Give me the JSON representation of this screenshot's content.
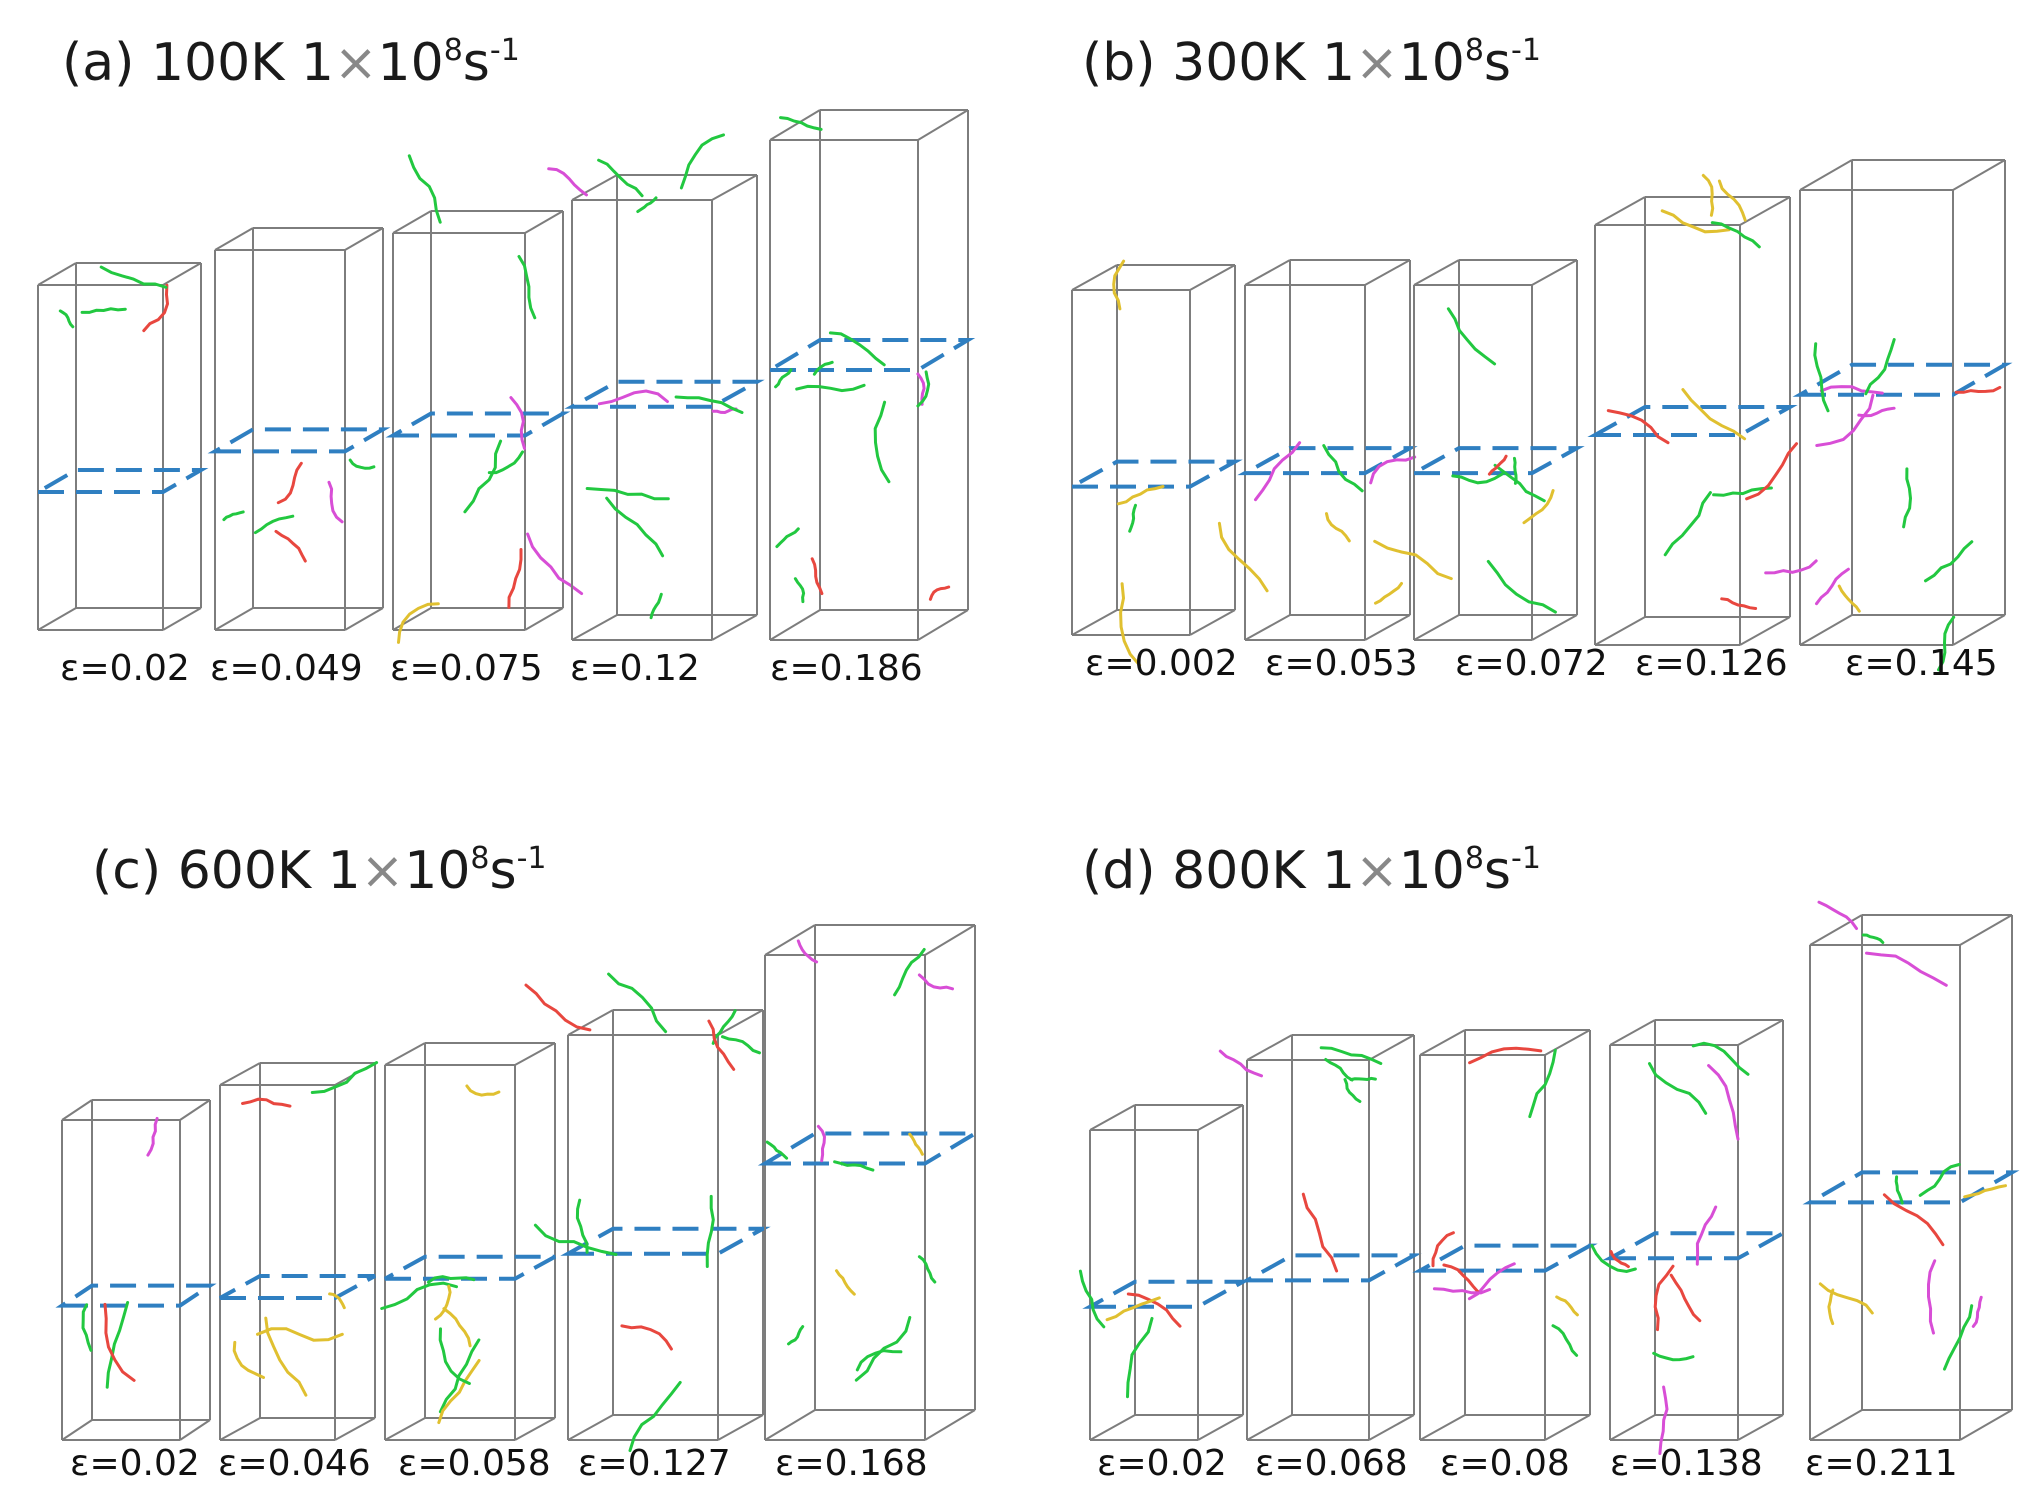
{
  "colors": {
    "box": "#7d7d7d",
    "plane": "#2f7fc1",
    "dislocation_main": "#22c840",
    "dislocation_secondary": "#e8473f",
    "dislocation_tertiary": "#d84ed6",
    "dislocation_other": "#e0c030"
  },
  "panels": [
    {
      "title_prefix": "(a) 100K 1",
      "title_times": "×",
      "title_ten": "10",
      "title_exp": "8",
      "title_unit": "s",
      "title_unit_exp": "-1",
      "strains": [
        "ε=0.02",
        "ε=0.049",
        "ε=0.075",
        "ε=0.12",
        "ε=0.186"
      ]
    },
    {
      "title_prefix": "(b) 300K 1",
      "title_times": "×",
      "title_ten": "10",
      "title_exp": "8",
      "title_unit": "s",
      "title_unit_exp": "-1",
      "strains": [
        "ε=0.002",
        "ε=0.053",
        "ε=0.072",
        "ε=0.126",
        "ε=0.145"
      ]
    },
    {
      "title_prefix": "(c) 600K 1",
      "title_times": "×",
      "title_ten": "10",
      "title_exp": "8",
      "title_unit": "s",
      "title_unit_exp": "-1",
      "strains": [
        "ε=0.02",
        "ε=0.046",
        "ε=0.058",
        "ε=0.127",
        "ε=0.168"
      ]
    },
    {
      "title_prefix": "(d) 800K 1",
      "title_times": "×",
      "title_ten": "10",
      "title_exp": "8",
      "title_unit": "s",
      "title_unit_exp": "-1",
      "strains": [
        "ε=0.02",
        "ε=0.068",
        "ε=0.08",
        "ε=0.138",
        "ε=0.211"
      ]
    }
  ]
}
